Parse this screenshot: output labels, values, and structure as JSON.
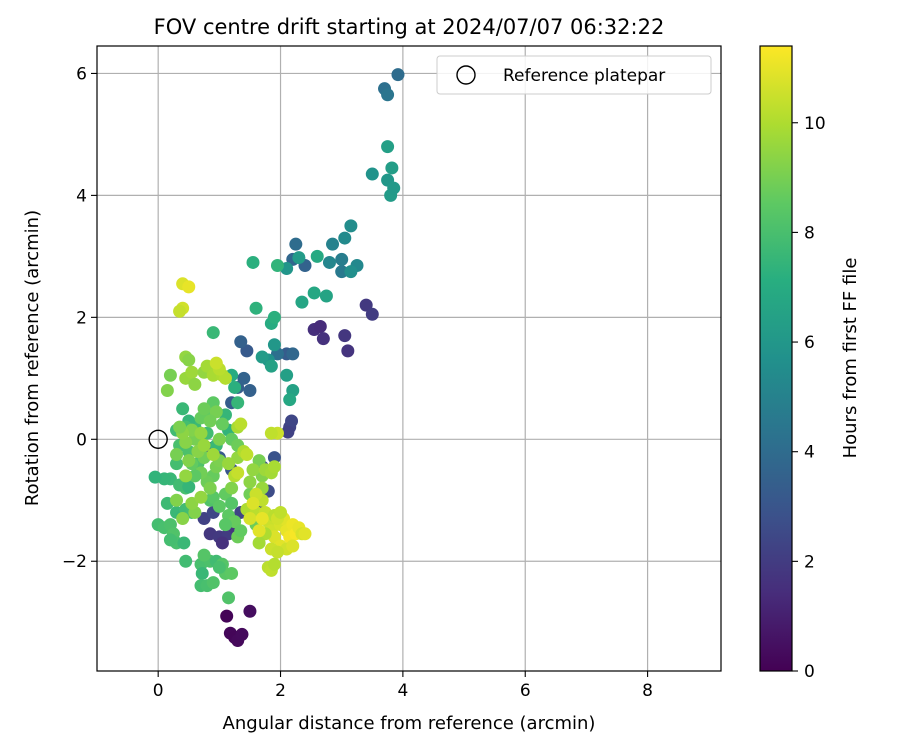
{
  "chart_data": {
    "type": "scatter",
    "title": "FOV centre drift starting at 2024/07/07 06:32:22",
    "xlabel": "Angular distance from reference (arcmin)",
    "ylabel": "Rotation from reference (arcmin)",
    "xlim": [
      -1,
      9.2
    ],
    "ylim": [
      -3.8,
      6.45
    ],
    "xticks": [
      0,
      2,
      4,
      6,
      8
    ],
    "xtick_labels": [
      "0",
      "2",
      "4",
      "6",
      "8"
    ],
    "yticks": [
      -2,
      0,
      2,
      4,
      6
    ],
    "ytick_labels": [
      "−2",
      "0",
      "2",
      "4",
      "6"
    ],
    "grid": true,
    "legend": {
      "location": "top-right",
      "entries": [
        "Reference platepar"
      ]
    },
    "reference_point": {
      "x": 0,
      "y": 0
    },
    "colorbar": {
      "label": "Hours from first FF file",
      "colormap": "viridis",
      "range": [
        0,
        11.4
      ],
      "ticks": [
        0,
        2,
        4,
        6,
        8,
        10
      ],
      "tick_labels": [
        "0",
        "2",
        "4",
        "6",
        "8",
        "10"
      ]
    },
    "points": [
      [
        1.12,
        -2.9,
        0.1
      ],
      [
        1.18,
        -3.18,
        0.2
      ],
      [
        1.25,
        -3.25,
        0.15
      ],
      [
        1.3,
        -3.3,
        0.25
      ],
      [
        1.37,
        -3.2,
        0.3
      ],
      [
        1.5,
        -2.82,
        0.4
      ],
      [
        0.85,
        -1.55,
        1.8
      ],
      [
        1.0,
        -1.6,
        1.9
      ],
      [
        1.15,
        -1.55,
        2.0
      ],
      [
        1.25,
        -1.45,
        1.7
      ],
      [
        0.75,
        -1.3,
        2.2
      ],
      [
        1.35,
        -1.2,
        2.3
      ],
      [
        0.9,
        -1.2,
        2.4
      ],
      [
        1.05,
        -1.7,
        1.6
      ],
      [
        2.55,
        1.8,
        1.5
      ],
      [
        2.65,
        1.85,
        1.4
      ],
      [
        2.7,
        1.65,
        1.6
      ],
      [
        3.05,
        1.7,
        1.8
      ],
      [
        3.1,
        1.45,
        1.7
      ],
      [
        3.4,
        2.2,
        1.9
      ],
      [
        3.5,
        2.05,
        2.0
      ],
      [
        2.15,
        0.2,
        2.3
      ],
      [
        2.18,
        0.3,
        2.4
      ],
      [
        2.12,
        0.12,
        2.2
      ],
      [
        1.55,
        -1.3,
        2.6
      ],
      [
        1.6,
        -1.1,
        2.7
      ],
      [
        1.9,
        -0.3,
        2.9
      ],
      [
        1.7,
        -0.45,
        2.8
      ],
      [
        1.8,
        -0.85,
        2.6
      ],
      [
        1.2,
        -0.5,
        3.0
      ],
      [
        1.0,
        -0.3,
        3.2
      ],
      [
        0.85,
        -0.15,
        3.1
      ],
      [
        1.3,
        0.85,
        3.4
      ],
      [
        1.4,
        1.0,
        3.6
      ],
      [
        1.5,
        0.8,
        3.5
      ],
      [
        2.1,
        1.4,
        3.3
      ],
      [
        1.45,
        1.45,
        3.2
      ],
      [
        1.35,
        1.6,
        3.5
      ],
      [
        1.2,
        0.6,
        3.3
      ],
      [
        2.4,
        2.85,
        3.6
      ],
      [
        2.2,
        2.95,
        3.8
      ],
      [
        2.25,
        3.2,
        4.0
      ],
      [
        3.7,
        5.75,
        4.2
      ],
      [
        3.75,
        5.65,
        4.4
      ],
      [
        3.92,
        5.98,
        4.0
      ],
      [
        2.2,
        1.4,
        3.8
      ],
      [
        1.95,
        1.4,
        4.2
      ],
      [
        3.0,
        2.75,
        4.6
      ],
      [
        3.0,
        2.95,
        4.8
      ],
      [
        2.85,
        3.2,
        5.0
      ],
      [
        2.8,
        2.9,
        5.2
      ],
      [
        3.05,
        3.3,
        5.4
      ],
      [
        3.15,
        3.5,
        5.5
      ],
      [
        3.25,
        2.85,
        5.3
      ],
      [
        3.15,
        2.75,
        5.6
      ],
      [
        3.5,
        4.35,
        5.8
      ],
      [
        3.75,
        4.25,
        6.0
      ],
      [
        3.8,
        4.0,
        6.2
      ],
      [
        3.85,
        4.12,
        6.1
      ],
      [
        3.82,
        4.45,
        6.3
      ],
      [
        3.75,
        4.8,
        6.4
      ],
      [
        2.1,
        2.8,
        5.9
      ],
      [
        2.3,
        2.98,
        6.2
      ],
      [
        1.9,
        1.55,
        6.0
      ],
      [
        1.8,
        1.3,
        5.8
      ],
      [
        1.7,
        1.35,
        6.2
      ],
      [
        1.85,
        1.2,
        6.5
      ],
      [
        2.35,
        2.25,
        6.7
      ],
      [
        2.55,
        2.4,
        6.8
      ],
      [
        2.6,
        3.0,
        6.9
      ],
      [
        2.75,
        2.35,
        6.6
      ],
      [
        2.2,
        0.8,
        6.5
      ],
      [
        2.15,
        0.65,
        6.8
      ],
      [
        2.1,
        1.05,
        6.4
      ],
      [
        1.85,
        1.9,
        7.0
      ],
      [
        1.9,
        2.0,
        7.2
      ],
      [
        1.95,
        2.85,
        7.4
      ],
      [
        1.55,
        2.9,
        7.2
      ],
      [
        1.6,
        2.15,
        7.3
      ],
      [
        1.2,
        1.05,
        7.0
      ],
      [
        1.25,
        0.85,
        7.2
      ],
      [
        1.3,
        0.6,
        7.5
      ],
      [
        0.9,
        1.75,
        7.6
      ],
      [
        1.1,
        0.4,
        7.5
      ],
      [
        1.15,
        0.15,
        7.4
      ],
      [
        0.95,
        -0.1,
        7.6
      ],
      [
        0.8,
        0.1,
        7.8
      ],
      [
        0.6,
        0.2,
        7.7
      ],
      [
        0.5,
        0.3,
        7.5
      ],
      [
        0.4,
        0.5,
        7.6
      ],
      [
        0.45,
        0.2,
        7.9
      ],
      [
        0.3,
        0.15,
        7.8
      ],
      [
        0.35,
        -0.1,
        8.0
      ],
      [
        0.5,
        -0.2,
        8.1
      ],
      [
        0.65,
        -0.4,
        8.2
      ],
      [
        0.3,
        -0.4,
        7.9
      ],
      [
        0.45,
        -0.8,
        8.0
      ],
      [
        0.2,
        -0.65,
        7.6
      ],
      [
        0.35,
        -0.75,
        7.8
      ],
      [
        0.5,
        -0.78,
        7.5
      ],
      [
        0.15,
        -1.05,
        7.7
      ],
      [
        0.3,
        -1.2,
        7.6
      ],
      [
        0.4,
        -1.25,
        7.5
      ],
      [
        0.45,
        -1.15,
        7.8
      ],
      [
        0.55,
        -1.2,
        7.9
      ],
      [
        0.0,
        -1.4,
        7.9
      ],
      [
        0.1,
        -1.45,
        8.0
      ],
      [
        0.2,
        -1.4,
        8.1
      ],
      [
        0.25,
        -1.55,
        8.2
      ],
      [
        0.3,
        -1.7,
        8.0
      ],
      [
        0.2,
        -1.65,
        7.9
      ],
      [
        0.42,
        -1.7,
        7.6
      ],
      [
        0.45,
        -2.0,
        7.8
      ],
      [
        0.7,
        -2.05,
        8.0
      ],
      [
        0.72,
        -2.2,
        7.6
      ],
      [
        0.7,
        -2.4,
        7.9
      ],
      [
        0.8,
        -2.4,
        8.0
      ],
      [
        0.9,
        -2.35,
        8.2
      ],
      [
        0.85,
        -2.0,
        8.1
      ],
      [
        0.95,
        -2.0,
        7.8
      ],
      [
        1.05,
        -2.05,
        8.3
      ],
      [
        1.1,
        -2.2,
        8.4
      ],
      [
        1.2,
        -2.2,
        8.5
      ],
      [
        1.15,
        -2.6,
        8.2
      ],
      [
        1.0,
        -2.1,
        8.0
      ],
      [
        0.75,
        -1.9,
        8.3
      ],
      [
        0.1,
        -0.65,
        7.5
      ],
      [
        -0.05,
        -0.62,
        7.4
      ],
      [
        0.85,
        -1.0,
        8.2
      ],
      [
        0.9,
        -0.95,
        8.4
      ],
      [
        1.0,
        -1.1,
        8.5
      ],
      [
        1.1,
        -0.9,
        8.6
      ],
      [
        1.2,
        -1.05,
        8.3
      ],
      [
        1.15,
        -1.25,
        8.5
      ],
      [
        1.25,
        -1.35,
        8.7
      ],
      [
        1.3,
        -1.6,
        8.8
      ],
      [
        1.1,
        -1.4,
        8.4
      ],
      [
        1.35,
        -1.5,
        8.6
      ],
      [
        0.9,
        -0.6,
        8.7
      ],
      [
        0.8,
        -0.7,
        8.8
      ],
      [
        0.7,
        -0.55,
        8.9
      ],
      [
        0.6,
        -0.6,
        8.5
      ],
      [
        0.55,
        -0.4,
        8.6
      ],
      [
        0.75,
        -0.3,
        8.9
      ],
      [
        0.95,
        -0.45,
        9.0
      ],
      [
        1.0,
        -0.35,
        9.1
      ],
      [
        1.2,
        -0.8,
        9.2
      ],
      [
        1.5,
        -0.9,
        8.9
      ],
      [
        1.6,
        -1.4,
        8.8
      ],
      [
        1.55,
        -1.15,
        9.0
      ],
      [
        1.7,
        -1.3,
        9.1
      ],
      [
        1.65,
        -0.35,
        9.0
      ],
      [
        1.7,
        -0.6,
        9.2
      ],
      [
        1.5,
        -0.7,
        9.4
      ],
      [
        1.55,
        -0.5,
        9.5
      ],
      [
        1.7,
        -0.8,
        9.6
      ],
      [
        1.75,
        -0.5,
        9.7
      ],
      [
        1.85,
        -0.55,
        9.8
      ],
      [
        1.9,
        -0.45,
        9.9
      ],
      [
        1.3,
        -0.3,
        9.5
      ],
      [
        1.15,
        -0.4,
        9.6
      ],
      [
        0.9,
        0.6,
        8.5
      ],
      [
        0.8,
        0.4,
        8.6
      ],
      [
        0.7,
        0.35,
        8.7
      ],
      [
        0.75,
        0.5,
        8.8
      ],
      [
        0.95,
        0.45,
        9.0
      ],
      [
        0.85,
        0.3,
        8.9
      ],
      [
        1.05,
        0.25,
        8.7
      ],
      [
        1.2,
        0.0,
        8.6
      ],
      [
        1.3,
        -0.1,
        8.8
      ],
      [
        1.0,
        0.0,
        9.1
      ],
      [
        0.6,
        0.0,
        9.0
      ],
      [
        0.55,
        0.15,
        9.2
      ],
      [
        0.45,
        -0.05,
        9.3
      ],
      [
        0.4,
        0.1,
        9.4
      ],
      [
        0.35,
        0.2,
        9.1
      ],
      [
        0.3,
        -0.25,
        9.0
      ],
      [
        0.5,
        -0.35,
        9.2
      ],
      [
        0.65,
        -0.2,
        9.3
      ],
      [
        0.7,
        0.1,
        9.5
      ],
      [
        0.75,
        -0.1,
        9.6
      ],
      [
        0.9,
        -0.25,
        9.7
      ],
      [
        0.85,
        -0.8,
        9.1
      ],
      [
        0.6,
        -1.2,
        9.2
      ],
      [
        0.55,
        -1.05,
        9.4
      ],
      [
        0.7,
        -0.95,
        9.5
      ],
      [
        0.3,
        -1.0,
        9.2
      ],
      [
        0.4,
        -1.3,
        9.3
      ],
      [
        0.45,
        -0.6,
        9.5
      ],
      [
        0.2,
        1.05,
        9.0
      ],
      [
        0.15,
        0.8,
        9.2
      ],
      [
        0.45,
        1.35,
        9.5
      ],
      [
        0.5,
        1.3,
        9.3
      ],
      [
        0.45,
        1.0,
        9.6
      ],
      [
        0.55,
        1.1,
        9.7
      ],
      [
        0.6,
        0.9,
        9.4
      ],
      [
        0.75,
        1.1,
        9.5
      ],
      [
        0.8,
        1.2,
        9.8
      ],
      [
        0.9,
        1.05,
        9.9
      ],
      [
        1.05,
        1.05,
        10.0
      ],
      [
        1.1,
        1.0,
        10.1
      ],
      [
        1.0,
        1.15,
        10.2
      ],
      [
        0.95,
        1.25,
        10.5
      ],
      [
        0.4,
        2.55,
        10.8
      ],
      [
        0.5,
        2.5,
        11.0
      ],
      [
        0.4,
        2.15,
        10.6
      ],
      [
        0.35,
        2.1,
        10.4
      ],
      [
        1.45,
        -1.15,
        10.0
      ],
      [
        1.6,
        -1.2,
        10.2
      ],
      [
        1.7,
        -1.0,
        10.3
      ],
      [
        1.75,
        -1.2,
        10.4
      ],
      [
        1.8,
        -1.35,
        10.5
      ],
      [
        1.85,
        -1.5,
        10.6
      ],
      [
        1.9,
        -1.6,
        10.8
      ],
      [
        2.0,
        -1.4,
        10.7
      ],
      [
        2.05,
        -1.3,
        10.9
      ],
      [
        2.1,
        -1.5,
        11.0
      ],
      [
        2.15,
        -1.6,
        11.2
      ],
      [
        2.2,
        -1.4,
        11.1
      ],
      [
        2.25,
        -1.55,
        11.3
      ],
      [
        2.3,
        -1.45,
        11.0
      ],
      [
        2.0,
        -1.75,
        10.9
      ],
      [
        2.1,
        -1.8,
        10.6
      ],
      [
        2.2,
        -1.75,
        10.8
      ],
      [
        2.35,
        -1.55,
        10.7
      ],
      [
        1.85,
        -1.8,
        10.5
      ],
      [
        1.95,
        -1.85,
        10.4
      ],
      [
        1.8,
        -2.1,
        10.2
      ],
      [
        1.85,
        -2.15,
        10.3
      ],
      [
        1.9,
        -2.05,
        10.1
      ],
      [
        2.4,
        -1.55,
        10.9
      ],
      [
        1.75,
        -1.55,
        10.0
      ],
      [
        1.65,
        -1.7,
        9.8
      ],
      [
        1.9,
        -1.25,
        10.2
      ],
      [
        1.95,
        -1.3,
        10.6
      ],
      [
        2.0,
        -1.2,
        10.3
      ],
      [
        1.95,
        0.1,
        10.5
      ],
      [
        1.85,
        0.1,
        10.3
      ],
      [
        1.3,
        0.2,
        9.9
      ],
      [
        1.35,
        0.25,
        10.2
      ],
      [
        1.4,
        -0.2,
        10.0
      ],
      [
        1.45,
        -0.25,
        10.3
      ],
      [
        1.25,
        -0.6,
        10.1
      ],
      [
        1.3,
        -0.55,
        10.4
      ],
      [
        1.6,
        -0.9,
        10.5
      ],
      [
        1.5,
        -1.3,
        10.7
      ],
      [
        1.65,
        -1.5,
        10.9
      ],
      [
        1.7,
        -1.3,
        11.0
      ],
      [
        1.55,
        -1.05,
        10.8
      ]
    ]
  }
}
